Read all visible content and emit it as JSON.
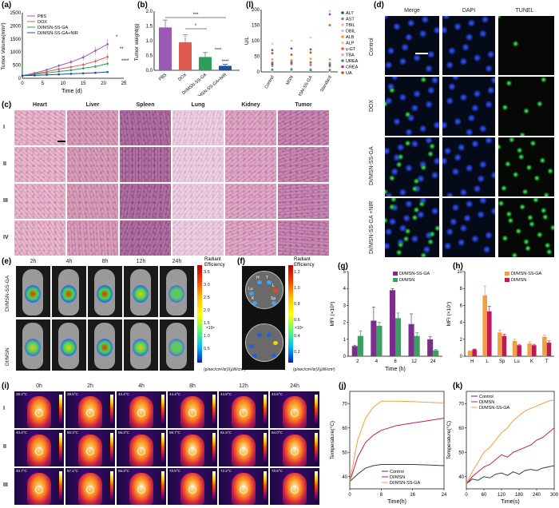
{
  "panel_labels": [
    "(a)",
    "(b)",
    "(l)",
    "(d)",
    "(c)",
    "(e)",
    "(f)",
    "(g)",
    "(h)",
    "(i)",
    "(j)",
    "(k)"
  ],
  "panel_a": {
    "legend": [
      "PBS",
      "DOX",
      "DI/MSN-SS-GA",
      "DI/MSN-SS-GA+NIR"
    ],
    "colors": [
      "#9b59b6",
      "#e05a4f",
      "#2e9e5b",
      "#1f4e9e"
    ],
    "xlabel": "Time (d)",
    "ylabel": "Tumor Volume(mm³)",
    "xticks": [
      "0",
      "5",
      "10",
      "15",
      "20",
      "25"
    ],
    "yticks": [
      "0",
      "500",
      "1000",
      "1500",
      "2000",
      "2500"
    ],
    "sig": [
      "*",
      "**",
      "****"
    ]
  },
  "panel_b": {
    "ylabel": "Tumor weight(g)",
    "categories": [
      "PBS",
      "DOX",
      "DI/MSN-SS-GA",
      "DI/MSN-SS-GA+NIR"
    ],
    "values": [
      1.45,
      0.95,
      0.45,
      0.15
    ],
    "errors": [
      0.25,
      0.25,
      0.15,
      0.05
    ],
    "colors": [
      "#9b59b6",
      "#e05a4f",
      "#2e9e5b",
      "#1f4e9e"
    ],
    "yticks": [
      "0.0",
      "0.5",
      "1.0",
      "1.5",
      "2.0"
    ],
    "sig": [
      "***",
      "*",
      "****",
      "****"
    ]
  },
  "panel_l": {
    "ylabel": "U/L",
    "categories": [
      "Control",
      "MSN",
      "MSN-SS-GA",
      "Standard"
    ],
    "yticks": [
      "0",
      "50",
      "100",
      "150",
      "200"
    ],
    "legend": [
      "ALT",
      "AST",
      "TBIL",
      "DBIL",
      "ALB",
      "ALP",
      "γ-GT",
      "TBA",
      "UREA",
      "CREA",
      "UA"
    ],
    "legend_colors": [
      "#1f4e9e",
      "#7f7f7f",
      "#e8b4c8",
      "#c7c7c7",
      "#f0a030",
      "#f5c6a0",
      "#e05a4f",
      "#f4a3b4",
      "#2e9e5b",
      "#8e44ad",
      "#d35400"
    ]
  },
  "panel_d": {
    "columns": [
      "Merge",
      "DAPI",
      "TUNEL"
    ],
    "rows": [
      "Control",
      "DOX",
      "DI/MSN-SS-GA",
      "DI/MSN-SS-GA +NIR"
    ]
  },
  "panel_c": {
    "columns": [
      "Heart",
      "Liver",
      "Spleen",
      "Lung",
      "Kidney",
      "Tumor"
    ],
    "rows": [
      "I",
      "II",
      "III",
      "IV"
    ]
  },
  "panel_e": {
    "timepoints": [
      "2h",
      "4h",
      "8h",
      "12h",
      "24h"
    ],
    "rows": [
      "DI/MSN-SS-GA",
      "DI/MSN"
    ],
    "scale_title": "Radiant Efficiency",
    "scale_ticks": [
      "3.5",
      "3.0",
      "2.5",
      "2.0",
      "1.5",
      "1.0",
      "0.5"
    ],
    "scale_exp": "×10⁹",
    "scale_unit": "(p/sec/cm²/sr)/(μW/cm²)"
  },
  "panel_f": {
    "scale_title": "Radiant Efficiency",
    "scale_ticks": [
      "1.2",
      "1.0",
      "0.8",
      "0.6",
      "0.4",
      "0.2"
    ],
    "scale_exp": "×10⁹",
    "scale_unit": "(p/sec/cm²/sr)/(μW/cm²)",
    "organ_labels": [
      "H",
      "T",
      "Lu",
      "L",
      "K",
      "Sp"
    ]
  },
  "chart_data": [
    {
      "type": "bar",
      "panel": "g",
      "categories": [
        "2",
        "4",
        "8",
        "12",
        "24"
      ],
      "series": [
        {
          "name": "DI/MSN-SS-GA",
          "values": [
            0.6,
            2.1,
            3.9,
            1.9,
            1.0
          ],
          "errors": [
            0.05,
            0.8,
            0.1,
            0.6,
            0.15
          ],
          "color": "#7b2d8e"
        },
        {
          "name": "DI/MSN",
          "values": [
            1.2,
            1.8,
            2.25,
            1.2,
            0.35
          ],
          "errors": [
            0.3,
            0.2,
            0.3,
            0.2,
            0.05
          ],
          "color": "#3aa060"
        }
      ],
      "xlabel": "Time (h)",
      "ylabel": "MFI (×10⁸)",
      "ylim": [
        0,
        5
      ],
      "yticks": [
        "0",
        "1",
        "2",
        "3",
        "4",
        "5"
      ]
    },
    {
      "type": "bar",
      "panel": "h",
      "categories": [
        "H",
        "L",
        "Sp",
        "Lu",
        "K",
        "T"
      ],
      "series": [
        {
          "name": "DI/MSN-SS-GA",
          "values": [
            0.6,
            7.2,
            2.8,
            1.8,
            1.5,
            2.3
          ],
          "errors": [
            0.05,
            1.1,
            0.3,
            0.2,
            0.2,
            0.2
          ],
          "color": "#f0a040"
        },
        {
          "name": "DI/MSN",
          "values": [
            0.8,
            5.3,
            2.4,
            1.3,
            1.3,
            1.6
          ],
          "errors": [
            0.05,
            0.6,
            0.2,
            0.1,
            0.1,
            0.2
          ],
          "color": "#c2185b"
        }
      ],
      "xlabel": "",
      "ylabel": "MFI (×10⁷)",
      "ylim": [
        0,
        10
      ],
      "yticks": [
        "0",
        "2",
        "4",
        "6",
        "8",
        "10"
      ]
    },
    {
      "type": "line",
      "panel": "j",
      "series": [
        {
          "name": "Control",
          "x": [
            0,
            2,
            4,
            6,
            8,
            12,
            16,
            20,
            24
          ],
          "y": [
            38,
            41,
            43.5,
            44.5,
            45,
            45,
            45,
            44.8,
            44.5
          ],
          "color": "#2d3e50"
        },
        {
          "name": "DI/MSN",
          "x": [
            0,
            2,
            4,
            6,
            8,
            12,
            16,
            20,
            24
          ],
          "y": [
            38,
            48,
            54,
            57,
            59,
            61,
            62,
            63,
            64
          ],
          "color": "#c2185b"
        },
        {
          "name": "DI/MSN-SS-GA",
          "x": [
            0,
            2,
            4,
            6,
            8,
            12,
            16,
            20,
            24
          ],
          "y": [
            38,
            55,
            64,
            68.5,
            71,
            71,
            70.8,
            70.5,
            70.3
          ],
          "color": "#f0a040"
        }
      ],
      "xlabel": "Time(h)",
      "ylabel": "Temperature(°C)",
      "xlim": [
        0,
        24
      ],
      "ylim": [
        35,
        75
      ],
      "xticks": [
        "0",
        "8",
        "16",
        "24"
      ],
      "yticks": [
        "40",
        "50",
        "60",
        "70"
      ]
    },
    {
      "type": "line",
      "panel": "k",
      "series": [
        {
          "name": "Control",
          "x": [
            0,
            20,
            40,
            60,
            80,
            100,
            120,
            140,
            160,
            180,
            200,
            220,
            240,
            260,
            280,
            300
          ],
          "y": [
            37,
            39,
            38.5,
            40,
            39.5,
            41,
            41.5,
            40.5,
            42,
            41,
            42.5,
            43,
            42.5,
            43.5,
            44,
            44.5
          ],
          "color": "#2d3e50"
        },
        {
          "name": "DI/MSN",
          "x": [
            0,
            20,
            40,
            60,
            80,
            100,
            120,
            140,
            160,
            180,
            200,
            220,
            240,
            260,
            280,
            300
          ],
          "y": [
            37,
            40,
            42,
            44,
            45,
            47,
            49,
            48,
            50,
            51,
            52,
            53,
            55,
            56,
            58,
            60
          ],
          "color": "#c2185b"
        },
        {
          "name": "DI/MSN-SS-GA",
          "x": [
            0,
            20,
            40,
            60,
            80,
            100,
            120,
            140,
            160,
            180,
            200,
            220,
            240,
            260,
            280,
            300
          ],
          "y": [
            37,
            42,
            46,
            50,
            52,
            55,
            58,
            60,
            63,
            65,
            67,
            68,
            69,
            70,
            71,
            71.5
          ],
          "color": "#f0a040"
        }
      ],
      "xlabel": "Time(s)",
      "ylabel": "Temperature(°C)",
      "xlim": [
        0,
        300
      ],
      "ylim": [
        35,
        75
      ],
      "xticks": [
        "0",
        "60",
        "120",
        "180",
        "240",
        "300"
      ],
      "yticks": [
        "40",
        "50",
        "60",
        "70"
      ]
    }
  ],
  "panel_i": {
    "timepoints": [
      "0h",
      "2h",
      "4h",
      "8h",
      "12h",
      "24h"
    ],
    "rows": [
      "I",
      "II",
      "III"
    ],
    "temps": [
      [
        "39.2°C",
        "39.6°C",
        "43.4°C",
        "44.4°C",
        "44.8°C",
        "43.6°C"
      ],
      [
        "40.4°C",
        "50.3°C",
        "56.3°C",
        "59.7°C",
        "61.5°C",
        "64.0°C"
      ],
      [
        "40.7°C",
        "57.1°C",
        "65.3°C",
        "70.5°C",
        "72.2°C",
        "70.6°C"
      ]
    ]
  }
}
